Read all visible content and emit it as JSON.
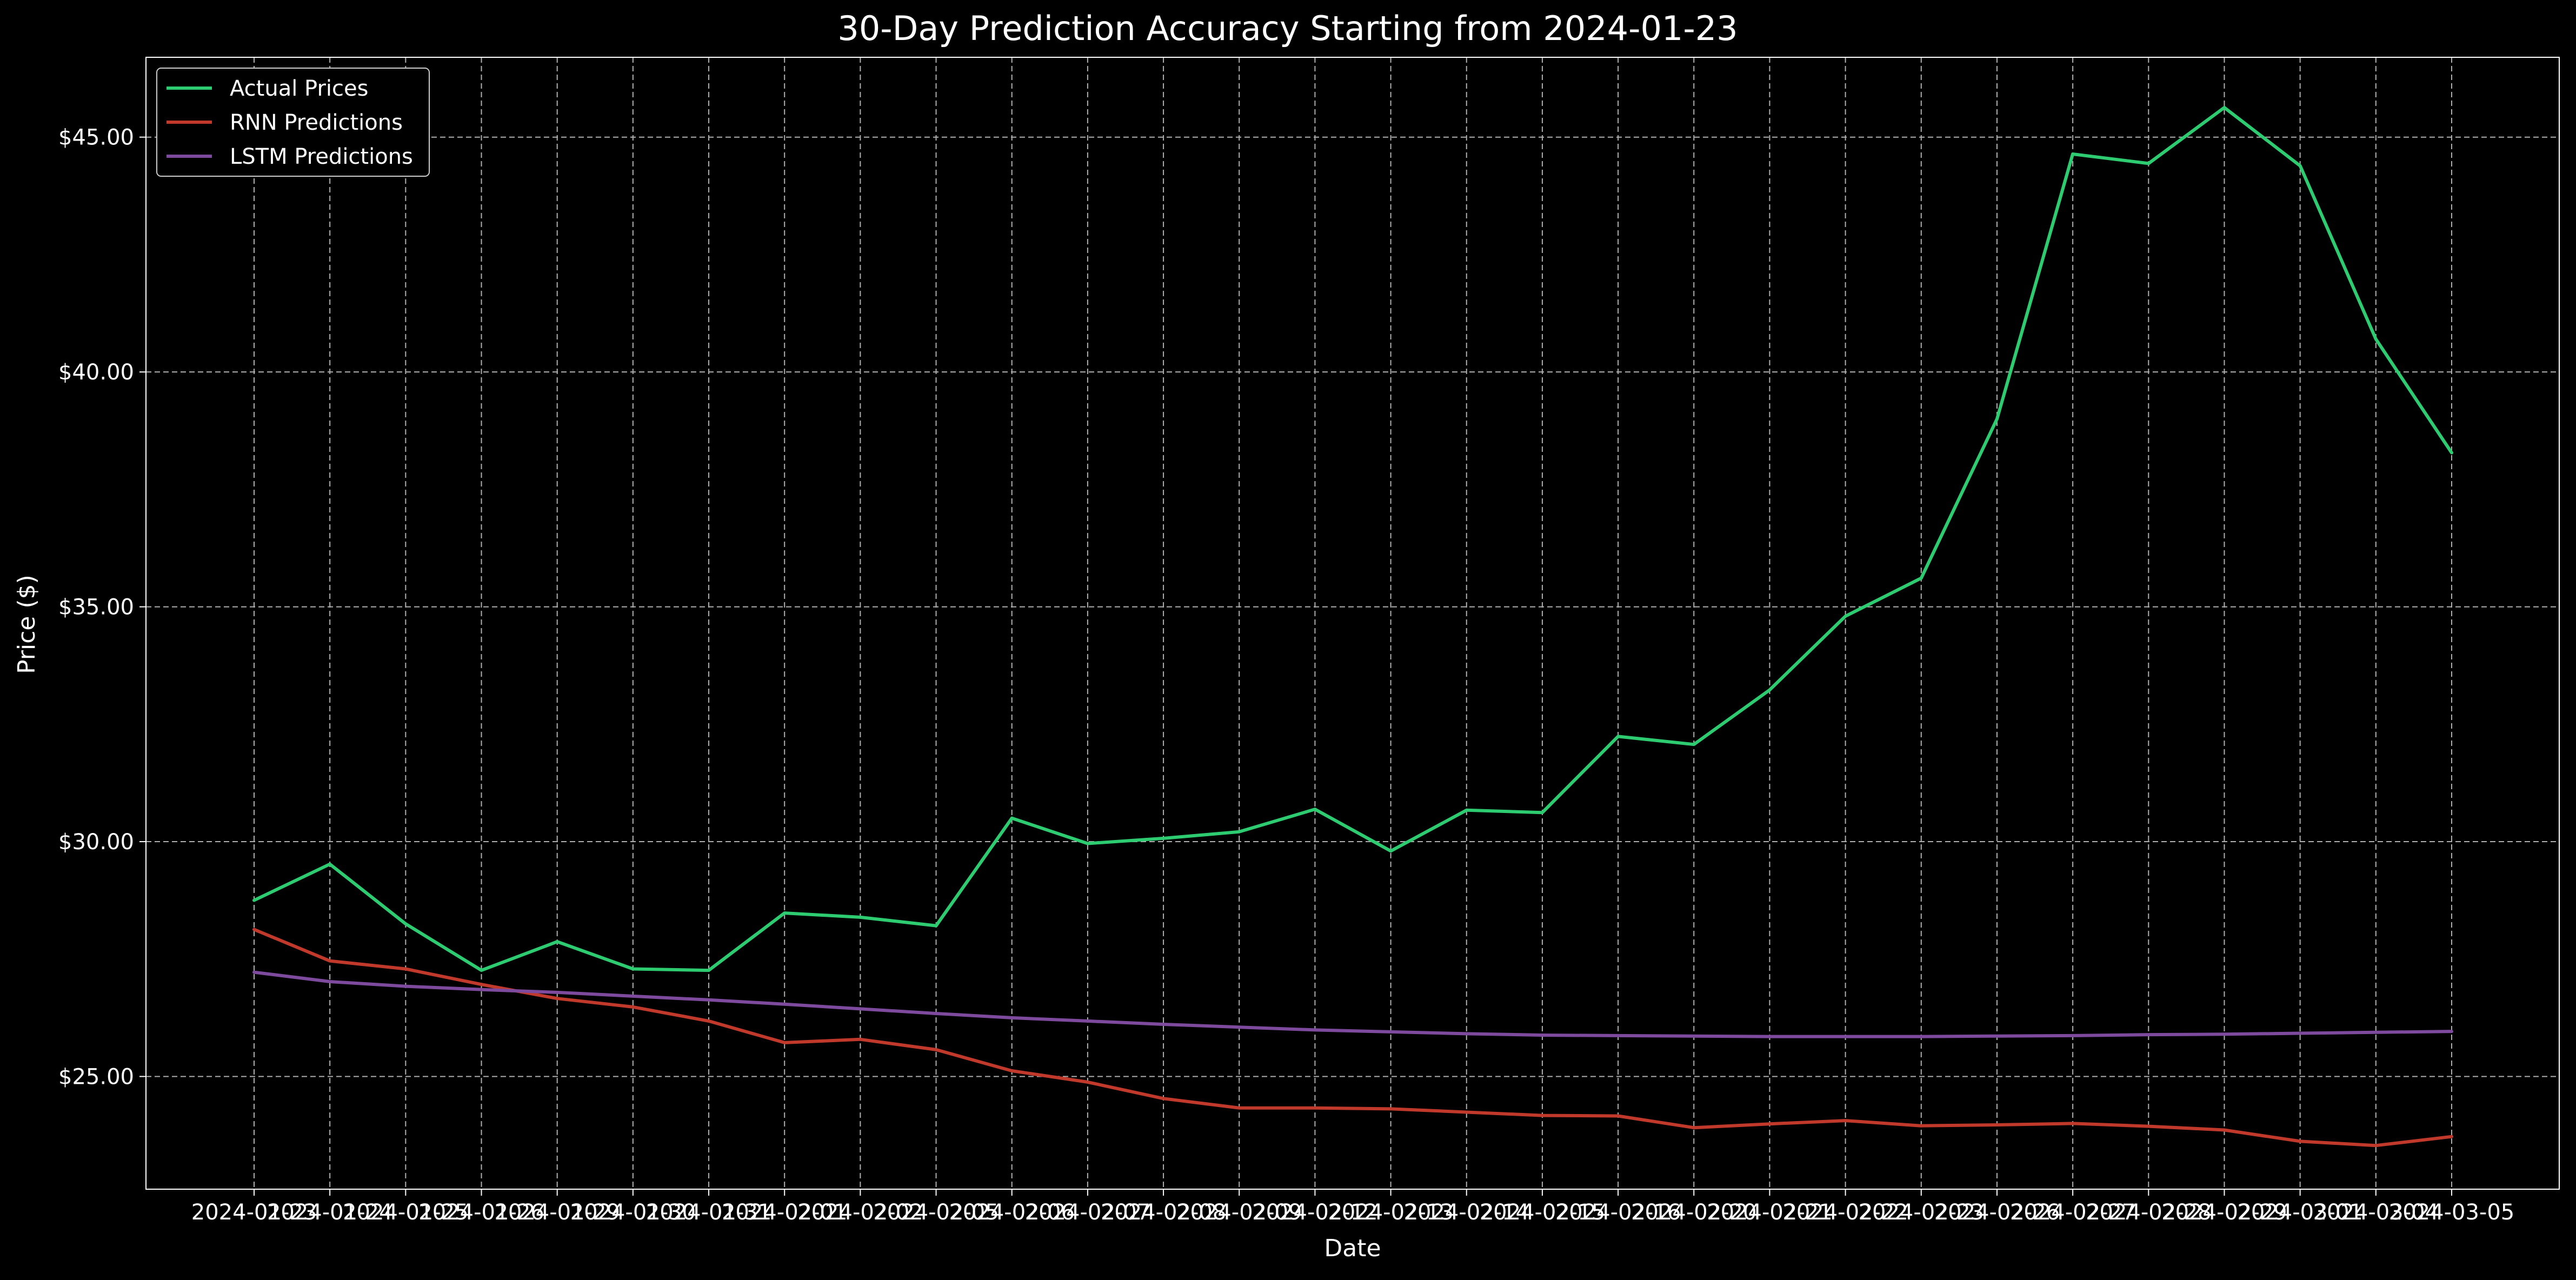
{
  "chart_data": {
    "type": "line",
    "title": "30-Day Prediction Accuracy Starting from 2024-01-23",
    "xlabel": "Date",
    "ylabel": "Price ($)",
    "x": [
      "2024-01-23",
      "2024-01-24",
      "2024-01-25",
      "2024-01-26",
      "2024-01-29",
      "2024-01-30",
      "2024-01-31",
      "2024-02-01",
      "2024-02-02",
      "2024-02-05",
      "2024-02-06",
      "2024-02-07",
      "2024-02-08",
      "2024-02-09",
      "2024-02-12",
      "2024-02-13",
      "2024-02-14",
      "2024-02-15",
      "2024-02-16",
      "2024-02-20",
      "2024-02-21",
      "2024-02-22",
      "2024-02-23",
      "2024-02-26",
      "2024-02-27",
      "2024-02-28",
      "2024-02-29",
      "2024-03-01",
      "2024-03-04",
      "2024-03-05"
    ],
    "ylim": [
      22.6,
      46.7
    ],
    "y_ticks": [
      25,
      30,
      35,
      40,
      45
    ],
    "y_tick_labels": [
      "$25.00",
      "$30.00",
      "$35.00",
      "$40.00",
      "$45.00"
    ],
    "grid": true,
    "legend_position": "top-left",
    "series": [
      {
        "name": "Actual Prices",
        "color": "#2ecc71",
        "values": [
          28.75,
          29.52,
          28.25,
          27.26,
          27.87,
          27.29,
          27.26,
          28.48,
          28.39,
          28.21,
          30.5,
          29.96,
          30.07,
          30.21,
          30.69,
          29.8,
          30.67,
          30.62,
          32.24,
          32.07,
          33.23,
          34.8,
          35.61,
          39.0,
          44.64,
          44.44,
          45.63,
          44.39,
          40.7,
          38.28
        ]
      },
      {
        "name": "RNN Predictions",
        "color": "#c0392b",
        "values": [
          28.13,
          27.46,
          27.29,
          26.96,
          26.66,
          26.48,
          26.18,
          25.72,
          25.79,
          25.57,
          25.12,
          24.88,
          24.53,
          24.33,
          24.33,
          24.31,
          24.24,
          24.17,
          24.16,
          23.91,
          23.99,
          24.06,
          23.95,
          23.97,
          24.0,
          23.94,
          23.86,
          23.62,
          23.53,
          23.72
        ]
      },
      {
        "name": "LSTM Predictions",
        "color": "#7d4a9e",
        "values": [
          27.22,
          27.02,
          26.92,
          26.85,
          26.79,
          26.71,
          26.63,
          26.54,
          26.44,
          26.34,
          26.25,
          26.18,
          26.11,
          26.05,
          25.99,
          25.95,
          25.91,
          25.88,
          25.87,
          25.86,
          25.85,
          25.85,
          25.85,
          25.86,
          25.87,
          25.89,
          25.9,
          25.92,
          25.94,
          25.96
        ]
      }
    ]
  }
}
